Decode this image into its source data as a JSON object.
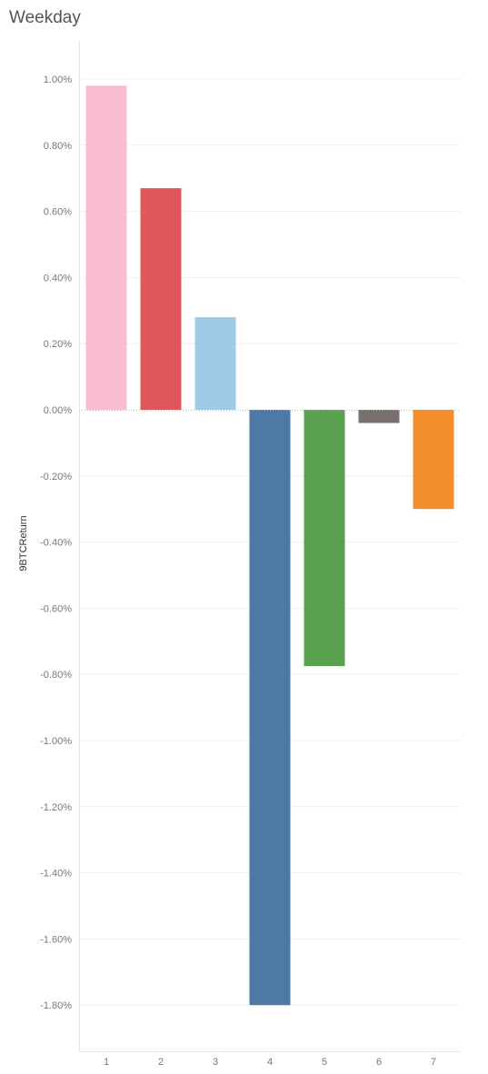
{
  "chart_data": {
    "type": "bar",
    "title": "Weekday",
    "ylabel": "9BTCReturn",
    "xlabel": "",
    "categories": [
      "1",
      "2",
      "3",
      "4",
      "5",
      "6",
      "7"
    ],
    "values": [
      0.98,
      0.67,
      0.28,
      -1.8,
      -0.775,
      -0.04,
      -0.3
    ],
    "colors": [
      "#f9bdd2",
      "#e0575b",
      "#a0cbe8",
      "#4e79a7",
      "#59a14f",
      "#79706e",
      "#f28e2b"
    ],
    "ylim": [
      -1.95,
      1.1
    ],
    "yticks": [
      1.0,
      0.8,
      0.6,
      0.4,
      0.2,
      0.0,
      -0.2,
      -0.4,
      -0.6,
      -0.8,
      -1.0,
      -1.2,
      -1.4,
      -1.6,
      -1.8
    ],
    "ytick_labels": [
      "1.00%",
      "0.80%",
      "0.60%",
      "0.40%",
      "0.20%",
      "0.00%",
      "-0.20%",
      "-0.40%",
      "-0.60%",
      "-0.80%",
      "-1.00%",
      "-1.20%",
      "-1.40%",
      "-1.60%",
      "-1.80%"
    ],
    "value_unit": "%",
    "grid": true,
    "legend": "none"
  }
}
